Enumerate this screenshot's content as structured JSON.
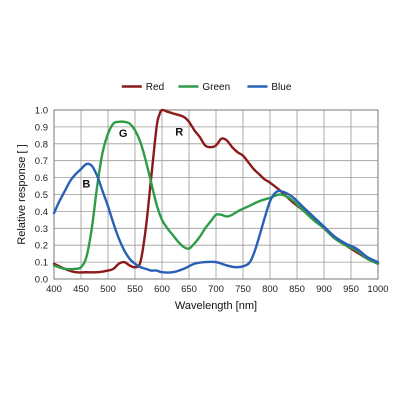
{
  "chart_data": {
    "type": "line",
    "title": "",
    "xlabel": "Wavelength [nm]",
    "ylabel": "Relative response [ ]",
    "xlim": [
      400,
      1000
    ],
    "ylim": [
      0,
      1.0
    ],
    "x_ticks": [
      400,
      450,
      500,
      550,
      600,
      650,
      700,
      750,
      800,
      850,
      900,
      950,
      1000
    ],
    "y_ticks": [
      0.0,
      0.1,
      0.2,
      0.3,
      0.4,
      0.5,
      0.6,
      0.7,
      0.8,
      0.9,
      1.0
    ],
    "x_tick_labels": [
      "400",
      "450",
      "500",
      "550",
      "600",
      "650",
      "700",
      "750",
      "800",
      "850",
      "900",
      "950",
      "1000"
    ],
    "y_tick_labels": [
      "0.0",
      "0.1",
      "0.2",
      "0.3",
      "0.4",
      "0.5",
      "0.6",
      "0.7",
      "0.8",
      "0.9",
      "1.0"
    ],
    "grid": true,
    "legend_position": "top-center",
    "series": [
      {
        "name": "Red",
        "color": "#8b1a1a",
        "x": [
          400,
          420,
          440,
          460,
          480,
          500,
          510,
          520,
          530,
          540,
          550,
          560,
          570,
          580,
          590,
          595,
          600,
          610,
          620,
          640,
          650,
          660,
          670,
          680,
          690,
          700,
          710,
          720,
          730,
          740,
          750,
          760,
          770,
          780,
          790,
          800,
          820,
          840,
          860,
          880,
          900,
          920,
          940,
          960,
          980,
          1000
        ],
        "y": [
          0.09,
          0.06,
          0.04,
          0.04,
          0.04,
          0.05,
          0.06,
          0.09,
          0.1,
          0.08,
          0.07,
          0.1,
          0.3,
          0.6,
          0.9,
          0.97,
          1.0,
          0.99,
          0.98,
          0.96,
          0.93,
          0.88,
          0.84,
          0.79,
          0.78,
          0.79,
          0.83,
          0.82,
          0.78,
          0.75,
          0.73,
          0.69,
          0.65,
          0.62,
          0.59,
          0.57,
          0.52,
          0.46,
          0.41,
          0.36,
          0.3,
          0.24,
          0.2,
          0.16,
          0.12,
          0.09
        ]
      },
      {
        "name": "Green",
        "color": "#2e9c48",
        "x": [
          400,
          420,
          440,
          450,
          460,
          470,
          480,
          490,
          500,
          510,
          520,
          530,
          540,
          550,
          560,
          570,
          580,
          590,
          600,
          610,
          620,
          630,
          640,
          650,
          660,
          670,
          680,
          690,
          700,
          710,
          720,
          730,
          740,
          760,
          780,
          800,
          820,
          840,
          860,
          880,
          900,
          920,
          940,
          960,
          980,
          1000
        ],
        "y": [
          0.08,
          0.06,
          0.06,
          0.07,
          0.13,
          0.3,
          0.55,
          0.75,
          0.86,
          0.92,
          0.93,
          0.93,
          0.92,
          0.88,
          0.81,
          0.7,
          0.57,
          0.44,
          0.35,
          0.3,
          0.26,
          0.22,
          0.19,
          0.18,
          0.21,
          0.25,
          0.3,
          0.34,
          0.38,
          0.38,
          0.37,
          0.38,
          0.4,
          0.43,
          0.46,
          0.48,
          0.5,
          0.47,
          0.41,
          0.35,
          0.3,
          0.24,
          0.2,
          0.17,
          0.12,
          0.09
        ]
      },
      {
        "name": "Blue",
        "color": "#2a5fb7",
        "x": [
          400,
          410,
          420,
          430,
          440,
          450,
          460,
          470,
          480,
          490,
          500,
          510,
          520,
          530,
          540,
          550,
          560,
          570,
          580,
          590,
          600,
          620,
          640,
          660,
          680,
          700,
          720,
          740,
          760,
          770,
          780,
          790,
          800,
          810,
          820,
          840,
          860,
          880,
          900,
          920,
          940,
          960,
          980,
          1000
        ],
        "y": [
          0.39,
          0.46,
          0.52,
          0.58,
          0.62,
          0.65,
          0.68,
          0.67,
          0.61,
          0.52,
          0.43,
          0.33,
          0.24,
          0.17,
          0.12,
          0.09,
          0.07,
          0.06,
          0.05,
          0.05,
          0.04,
          0.04,
          0.06,
          0.09,
          0.1,
          0.1,
          0.08,
          0.07,
          0.09,
          0.15,
          0.25,
          0.36,
          0.46,
          0.51,
          0.52,
          0.49,
          0.43,
          0.37,
          0.31,
          0.25,
          0.21,
          0.18,
          0.13,
          0.1
        ]
      }
    ],
    "annotations": [
      {
        "text": "B",
        "x": 460,
        "y": 0.54
      },
      {
        "text": "G",
        "x": 528,
        "y": 0.84
      },
      {
        "text": "R",
        "x": 632,
        "y": 0.85
      }
    ]
  }
}
